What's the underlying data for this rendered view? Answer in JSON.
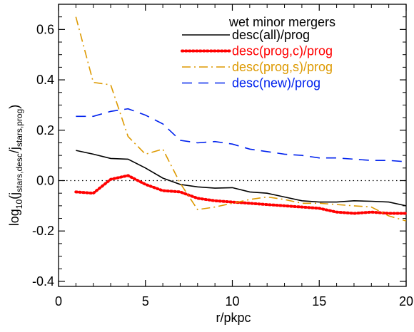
{
  "chart_data": {
    "type": "line",
    "xlabel": "r/pkpc",
    "ylabel": {
      "prefix": "log",
      "sub1": "10",
      "open": "(j",
      "sub2": "stars,desc",
      "mid": "/j",
      "sub3": "stars,prog",
      "close": ")"
    },
    "xlim": [
      0,
      20
    ],
    "ylim": [
      -0.42,
      0.7
    ],
    "xticks": [
      0,
      5,
      10,
      15,
      20
    ],
    "yticks": [
      -0.4,
      -0.2,
      0.0,
      0.2,
      0.4,
      0.6
    ],
    "xtick_labels": [
      "0",
      "5",
      "10",
      "15",
      "20"
    ],
    "ytick_labels": [
      "-0.4",
      "-0.2",
      "0.0",
      "0.2",
      "0.4",
      "0.6"
    ],
    "legend": {
      "title": "wet minor mergers",
      "placement": "top-right"
    },
    "reference_line": {
      "y": 0,
      "style": "dotted",
      "color": "#000000"
    },
    "series": [
      {
        "name": "desc(all)/prog",
        "color": "#000000",
        "dash": "solid",
        "x": [
          1,
          2,
          3,
          4,
          5,
          6,
          7,
          8,
          9,
          10,
          11,
          12,
          13,
          14,
          15,
          16,
          17,
          18,
          19,
          20
        ],
        "values": [
          0.12,
          0.105,
          0.088,
          0.085,
          0.05,
          0.01,
          -0.015,
          -0.025,
          -0.03,
          -0.028,
          -0.045,
          -0.05,
          -0.065,
          -0.08,
          -0.085,
          -0.085,
          -0.08,
          -0.082,
          -0.085,
          -0.1
        ]
      },
      {
        "name": "desc(prog,c)/prog",
        "color": "#ff0000",
        "dash": "dotted",
        "x": [
          1,
          2,
          3,
          4,
          5,
          6,
          7,
          8,
          9,
          10,
          11,
          12,
          13,
          14,
          15,
          16,
          17,
          18,
          19,
          20
        ],
        "values": [
          -0.045,
          -0.05,
          0.005,
          0.02,
          -0.015,
          -0.04,
          -0.045,
          -0.07,
          -0.08,
          -0.085,
          -0.09,
          -0.095,
          -0.1,
          -0.105,
          -0.11,
          -0.125,
          -0.13,
          -0.125,
          -0.13,
          -0.13
        ]
      },
      {
        "name": "desc(prog,s)/prog",
        "color": "#dd9900",
        "dash": "dashdot",
        "x": [
          1,
          2,
          3,
          4,
          5,
          6,
          7,
          8,
          9,
          10,
          11,
          12,
          13,
          14,
          15,
          16,
          17,
          18,
          19,
          20
        ],
        "values": [
          0.65,
          0.39,
          0.38,
          0.175,
          0.105,
          0.125,
          -0.01,
          -0.115,
          -0.105,
          -0.09,
          -0.075,
          -0.065,
          -0.075,
          -0.09,
          -0.09,
          -0.095,
          -0.1,
          -0.105,
          -0.14,
          -0.16
        ]
      },
      {
        "name": "desc(new)/prog",
        "color": "#0022ee",
        "dash": "dashed",
        "x": [
          1,
          2,
          3,
          4,
          5,
          6,
          7,
          8,
          9,
          10,
          11,
          12,
          13,
          14,
          15,
          16,
          17,
          18,
          19,
          20
        ],
        "values": [
          0.255,
          0.255,
          0.275,
          0.285,
          0.26,
          0.225,
          0.16,
          0.15,
          0.155,
          0.145,
          0.125,
          0.115,
          0.105,
          0.1,
          0.09,
          0.09,
          0.085,
          0.08,
          0.08,
          0.075
        ]
      }
    ]
  }
}
